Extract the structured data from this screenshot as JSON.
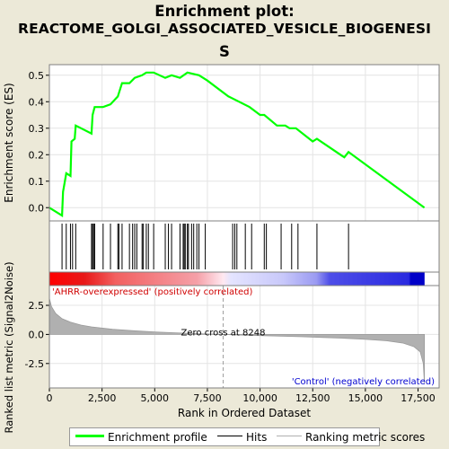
{
  "title_lines": [
    "Enrichment plot:",
    "REACTOME_GOLGI_ASSOCIATED_VESICLE_BIOGENESI",
    "S"
  ],
  "colors": {
    "curve": "#00ff00",
    "hits": "#000000",
    "metric": "#b0b0b0",
    "positive": "#ff0000",
    "negative": "#0000ff",
    "background": "#ece9d8"
  },
  "legend": [
    {
      "label": "Enrichment profile",
      "color": "#00ff00"
    },
    {
      "label": "Hits",
      "color": "#000000"
    },
    {
      "label": "Ranking metric scores",
      "color": "#b0b0b0"
    }
  ],
  "labels": {
    "pos_label": "'AHRR-overexpressed' (positively correlated)",
    "neg_label": "'Control' (negatively correlated)",
    "zero_cross": "Zero cross at 8248"
  },
  "chart_data": [
    {
      "type": "line",
      "title": "Enrichment plot: REACTOME_GOLGI_ASSOCIATED_VESICLE_BIOGENESIS",
      "ylabel": "Enrichment score (ES)",
      "xlim": [
        0,
        18500
      ],
      "ylim": [
        -0.05,
        0.54
      ],
      "yticks": [
        0.0,
        0.1,
        0.2,
        0.3,
        0.4,
        0.5
      ],
      "ytick_labels": [
        "0.0",
        "0.1",
        "0.2",
        "0.3",
        "0.4",
        "0.5"
      ],
      "x": [
        0,
        600,
        650,
        800,
        1000,
        1050,
        1200,
        1250,
        2000,
        2050,
        2150,
        2550,
        2900,
        3250,
        3450,
        3800,
        4050,
        4400,
        4600,
        4950,
        5500,
        5800,
        6200,
        6550,
        7100,
        7500,
        8500,
        9500,
        10000,
        10200,
        10800,
        11200,
        11400,
        11700,
        12500,
        12700,
        14000,
        14200,
        17800
      ],
      "y": [
        0.0,
        -0.03,
        0.06,
        0.13,
        0.12,
        0.25,
        0.26,
        0.31,
        0.28,
        0.35,
        0.38,
        0.38,
        0.39,
        0.42,
        0.47,
        0.47,
        0.49,
        0.5,
        0.51,
        0.51,
        0.49,
        0.5,
        0.49,
        0.51,
        0.5,
        0.48,
        0.42,
        0.38,
        0.35,
        0.35,
        0.31,
        0.31,
        0.3,
        0.3,
        0.25,
        0.26,
        0.19,
        0.21,
        0.0
      ]
    },
    {
      "type": "scatter",
      "name": "Hits",
      "x": [
        600,
        800,
        1000,
        1100,
        1250,
        2000,
        2050,
        2100,
        2150,
        2550,
        2900,
        3250,
        3300,
        3450,
        3800,
        3950,
        4050,
        4150,
        4400,
        4450,
        4600,
        4700,
        4950,
        5500,
        5650,
        5800,
        6200,
        6350,
        6400,
        6450,
        6550,
        6600,
        6750,
        6850,
        7000,
        7100,
        7400,
        8700,
        8800,
        8900,
        9300,
        9600,
        10200,
        10300,
        11000,
        11500,
        11800,
        12700,
        14200
      ]
    },
    {
      "type": "area",
      "ylabel": "Ranked list metric (Signal2Noise)",
      "xlabel": "Rank in Ordered Dataset",
      "xlim": [
        0,
        18500
      ],
      "ylim": [
        -4.6,
        4.2
      ],
      "xticks": [
        0,
        2500,
        5000,
        7500,
        10000,
        12500,
        15000,
        17500
      ],
      "xtick_labels": [
        "0",
        "2,500",
        "5,000",
        "7,500",
        "10,000",
        "12,500",
        "15,000",
        "17,500"
      ],
      "yticks": [
        2.5,
        0.0,
        -2.5
      ],
      "ytick_labels": [
        "2.5",
        "0.0",
        "-2.5"
      ],
      "zero_cross": 8248,
      "x": [
        0,
        100,
        300,
        600,
        1000,
        1500,
        2000,
        3000,
        4000,
        5000,
        6000,
        7000,
        8248,
        9000,
        10000,
        11000,
        12000,
        13000,
        14000,
        15000,
        16000,
        16800,
        17300,
        17600,
        17750,
        17800
      ],
      "y": [
        3.1,
        2.4,
        1.8,
        1.35,
        1.05,
        0.8,
        0.65,
        0.45,
        0.32,
        0.22,
        0.14,
        0.07,
        0.0,
        -0.05,
        -0.1,
        -0.15,
        -0.2,
        -0.26,
        -0.33,
        -0.42,
        -0.55,
        -0.75,
        -1.05,
        -1.5,
        -2.5,
        -4.2
      ]
    }
  ]
}
